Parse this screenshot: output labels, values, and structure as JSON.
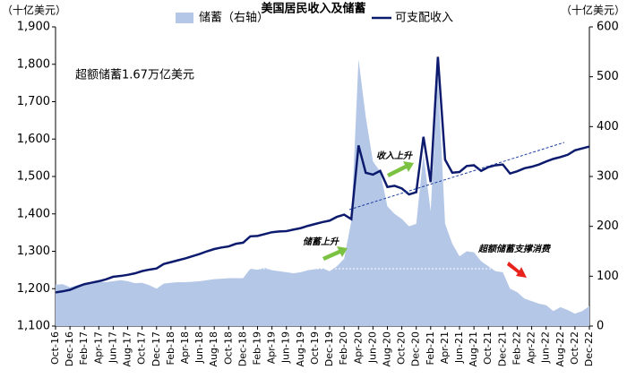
{
  "chart_data": {
    "type": "area-line",
    "title": "美国居民收入及储蓄",
    "y_label": "（十亿美元）",
    "y2_label": "（十亿美元）",
    "categories": [
      "Oct-16",
      null,
      "Dec-16",
      null,
      "Feb-17",
      null,
      "Apr-17",
      null,
      "Jun-17",
      null,
      "Aug-17",
      null,
      "Oct-17",
      null,
      "Dec-17",
      null,
      "Feb-18",
      null,
      "Apr-18",
      null,
      "Jun-18",
      null,
      "Aug-18",
      null,
      "Oct-18",
      null,
      "Dec-18",
      null,
      "Feb-19",
      null,
      "Apr-19",
      null,
      "Jun-19",
      null,
      "Aug-19",
      null,
      "Oct-19",
      null,
      "Dec-19",
      null,
      "Feb-20",
      null,
      "Apr-20",
      null,
      "Jun-20",
      null,
      "Aug-20",
      null,
      "Oct-20",
      null,
      "Dec-20",
      null,
      "Feb-21",
      null,
      "Apr-21",
      null,
      "Jun-21",
      null,
      "Aug-21",
      null,
      "Oct-21",
      null,
      "Dec-21",
      null,
      "Feb-22",
      null,
      "Apr-22",
      null,
      "Jun-22",
      null,
      "Aug-22",
      null,
      "Oct-22",
      null,
      "Dec-22"
    ],
    "series": [
      {
        "name": "储蓄（右轴）",
        "color": "#b4c7e7",
        "kind": "area",
        "axis": "y2",
        "values": [
          83,
          84,
          78,
          82,
          86,
          88,
          90,
          88,
          90,
          92,
          90,
          86,
          87,
          82,
          75,
          85,
          87,
          88,
          88,
          89,
          90,
          92,
          94,
          95,
          96,
          96,
          96,
          115,
          113,
          117,
          112,
          110,
          108,
          106,
          108,
          112,
          114,
          116,
          110,
          120,
          135,
          210,
          535,
          420,
          330,
          310,
          240,
          225,
          215,
          200,
          205,
          345,
          230,
          505,
          205,
          165,
          140,
          150,
          148,
          130,
          120,
          110,
          108,
          75,
          68,
          55,
          50,
          45,
          42,
          30,
          38,
          32,
          25,
          30,
          40
        ]
      },
      {
        "name": "可支配收入",
        "color": "#0d1b6e",
        "kind": "line",
        "axis": "y",
        "values": [
          1190,
          1193,
          1197,
          1205,
          1212,
          1216,
          1220,
          1225,
          1232,
          1234,
          1237,
          1241,
          1247,
          1251,
          1254,
          1266,
          1271,
          1276,
          1281,
          1287,
          1293,
          1300,
          1306,
          1310,
          1313,
          1320,
          1323,
          1340,
          1341,
          1346,
          1351,
          1353,
          1354,
          1358,
          1362,
          1368,
          1373,
          1378,
          1382,
          1392,
          1398,
          1386,
          1583,
          1510,
          1505,
          1515,
          1472,
          1475,
          1468,
          1452,
          1458,
          1606,
          1485,
          1820,
          1545,
          1510,
          1512,
          1528,
          1530,
          1515,
          1525,
          1530,
          1532,
          1508,
          1514,
          1522,
          1526,
          1532,
          1540,
          1547,
          1552,
          1558,
          1570,
          1575,
          1580
        ]
      }
    ],
    "ylim": [
      1100,
      1900
    ],
    "yticks": [
      {
        "value": 1100,
        "label": "1,100"
      },
      {
        "value": 1200,
        "label": "1,200"
      },
      {
        "value": 1300,
        "label": "1,300"
      },
      {
        "value": 1400,
        "label": "1,400"
      },
      {
        "value": 1500,
        "label": "1,500"
      },
      {
        "value": 1600,
        "label": "1,600"
      },
      {
        "value": 1700,
        "label": "1,700"
      },
      {
        "value": 1800,
        "label": "1,800"
      },
      {
        "value": 1900,
        "label": "1,900"
      }
    ],
    "y2lim": [
      0,
      600
    ],
    "y2ticks": [
      0,
      100,
      200,
      300,
      400,
      500,
      600
    ],
    "annotations": [
      "超额储蓄1.67万亿美元",
      "收入上升",
      "储蓄上升",
      "超额储蓄支撑消费"
    ]
  }
}
